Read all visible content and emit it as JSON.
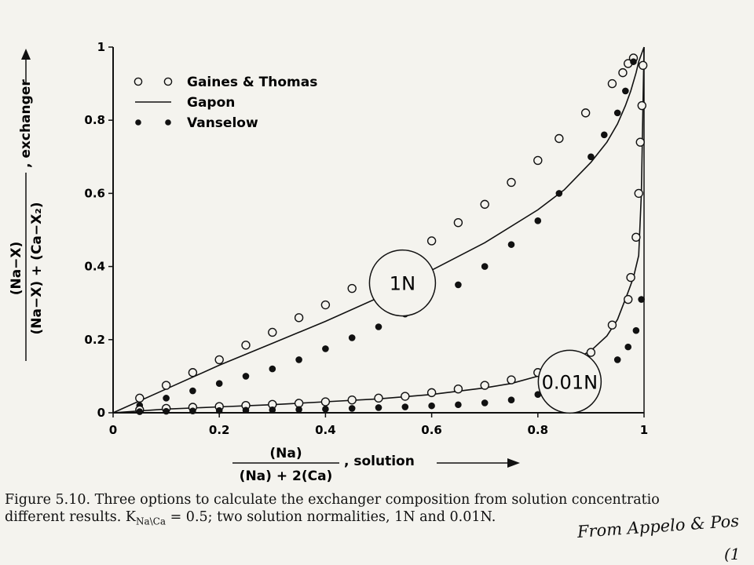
{
  "chart_data": {
    "type": "scatter",
    "x_axis": {
      "numerator": "(Na)",
      "denominator": "(Na) + 2(Ca)",
      "suffix": ", solution",
      "lim": [
        0,
        1
      ],
      "ticks": [
        0,
        0.2,
        0.4,
        0.6,
        0.8,
        1
      ],
      "tick_labels": [
        "0",
        "0.2",
        "0.4",
        "0.6",
        "0.8",
        "1"
      ]
    },
    "y_axis": {
      "numerator": "(Na−X)",
      "denominator": "(Na−X) + (Ca−X₂)",
      "suffix": ", exchanger",
      "lim": [
        0,
        1
      ],
      "ticks": [
        0,
        0.2,
        0.4,
        0.6,
        0.8,
        1
      ],
      "tick_labels": [
        "0",
        "0.2",
        "0.4",
        "0.6",
        "0.8",
        "1"
      ]
    },
    "legend": {
      "position": "top-left",
      "entries": [
        {
          "label": "Gaines & Thomas",
          "marker": "open-circle"
        },
        {
          "label": "Gapon",
          "marker": "line"
        },
        {
          "label": "Vanselow",
          "marker": "filled-circle"
        }
      ]
    },
    "annotations": [
      {
        "text": "1N",
        "x": 0.545,
        "y": 0.355
      },
      {
        "text": "0.01N",
        "x": 0.86,
        "y": 0.085
      }
    ],
    "series": [
      {
        "name": "Gaines & Thomas",
        "group": "1N",
        "style": "open-circle",
        "x": [
          0.05,
          0.1,
          0.15,
          0.2,
          0.25,
          0.3,
          0.35,
          0.4,
          0.45,
          0.5,
          0.6,
          0.65,
          0.7,
          0.75,
          0.8,
          0.84,
          0.89,
          0.94,
          0.96,
          0.97,
          0.98
        ],
        "y": [
          0.04,
          0.075,
          0.11,
          0.145,
          0.185,
          0.22,
          0.26,
          0.295,
          0.34,
          0.38,
          0.47,
          0.52,
          0.57,
          0.63,
          0.69,
          0.75,
          0.82,
          0.9,
          0.93,
          0.955,
          0.97
        ]
      },
      {
        "name": "Vanselow",
        "group": "1N",
        "style": "filled-circle",
        "x": [
          0.05,
          0.1,
          0.15,
          0.2,
          0.25,
          0.3,
          0.35,
          0.4,
          0.45,
          0.5,
          0.55,
          0.65,
          0.7,
          0.75,
          0.8,
          0.84,
          0.9,
          0.925,
          0.95,
          0.965,
          0.98
        ],
        "y": [
          0.02,
          0.04,
          0.06,
          0.08,
          0.1,
          0.12,
          0.145,
          0.175,
          0.205,
          0.235,
          0.27,
          0.35,
          0.4,
          0.46,
          0.525,
          0.6,
          0.7,
          0.76,
          0.82,
          0.88,
          0.96
        ]
      },
      {
        "name": "Gapon",
        "group": "1N",
        "style": "line",
        "x": [
          0,
          0.1,
          0.2,
          0.3,
          0.4,
          0.5,
          0.6,
          0.7,
          0.8,
          0.85,
          0.9,
          0.93,
          0.95,
          0.965,
          0.975,
          0.985,
          0.99,
          1
        ],
        "y": [
          0,
          0.065,
          0.13,
          0.19,
          0.25,
          0.315,
          0.39,
          0.465,
          0.555,
          0.61,
          0.685,
          0.74,
          0.79,
          0.84,
          0.88,
          0.93,
          0.96,
          1
        ]
      },
      {
        "name": "Gaines & Thomas",
        "group": "0.01N",
        "style": "open-circle",
        "x": [
          0.05,
          0.1,
          0.15,
          0.2,
          0.25,
          0.3,
          0.35,
          0.4,
          0.45,
          0.5,
          0.55,
          0.6,
          0.65,
          0.7,
          0.75,
          0.8,
          0.9,
          0.94,
          0.97,
          0.975,
          0.985,
          0.99,
          0.993,
          0.996,
          0.998
        ],
        "y": [
          0.008,
          0.012,
          0.015,
          0.017,
          0.02,
          0.023,
          0.026,
          0.03,
          0.035,
          0.04,
          0.045,
          0.055,
          0.065,
          0.075,
          0.09,
          0.11,
          0.165,
          0.24,
          0.31,
          0.37,
          0.48,
          0.6,
          0.74,
          0.84,
          0.95
        ]
      },
      {
        "name": "Vanselow",
        "group": "0.01N",
        "style": "filled-circle",
        "x": [
          0.05,
          0.1,
          0.15,
          0.2,
          0.25,
          0.3,
          0.35,
          0.4,
          0.45,
          0.5,
          0.55,
          0.6,
          0.65,
          0.7,
          0.75,
          0.8,
          0.9,
          0.95,
          0.97,
          0.985,
          0.995
        ],
        "y": [
          0.003,
          0.004,
          0.005,
          0.006,
          0.007,
          0.008,
          0.009,
          0.01,
          0.012,
          0.014,
          0.016,
          0.019,
          0.022,
          0.027,
          0.035,
          0.05,
          0.09,
          0.145,
          0.18,
          0.225,
          0.31
        ]
      },
      {
        "name": "Gapon",
        "group": "0.01N",
        "style": "line",
        "x": [
          0,
          0.1,
          0.2,
          0.3,
          0.4,
          0.5,
          0.6,
          0.7,
          0.75,
          0.8,
          0.85,
          0.9,
          0.93,
          0.95,
          0.97,
          0.98,
          0.99,
          0.995,
          1
        ],
        "y": [
          0,
          0.01,
          0.016,
          0.022,
          0.03,
          0.038,
          0.05,
          0.068,
          0.08,
          0.1,
          0.13,
          0.17,
          0.21,
          0.255,
          0.33,
          0.37,
          0.43,
          0.6,
          1
        ]
      }
    ]
  },
  "caption": {
    "line1": "Figure 5.10. Three options to calculate the exchanger composition from solution concentratio",
    "line2_pre": "different results. K",
    "line2_sub": "Na\\Ca",
    "line2_post": " = 0.5; two solution normalities, 1N and 0.01N."
  },
  "handwritten_note": "From Appelo & Pos",
  "handwritten_note_2": "(1"
}
